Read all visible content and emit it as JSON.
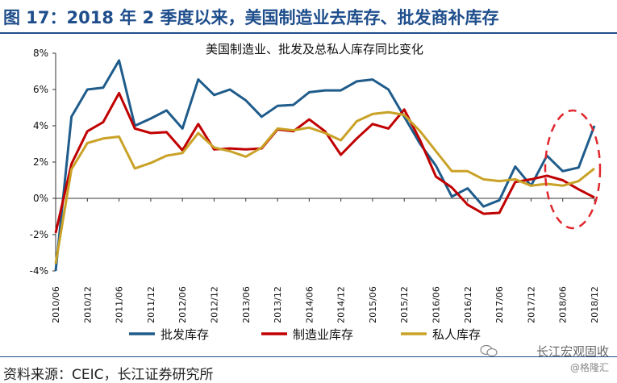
{
  "header": {
    "title": "图 17：2018 年 2 季度以来，美国制造业去库存、批发商补库存"
  },
  "footer": {
    "source": "资料来源：CEIC，长江证券研究所"
  },
  "watermark": {
    "line1": "长江宏观固收",
    "line2": "@格隆汇"
  },
  "chart_data": {
    "type": "line",
    "title": "美国制造业、批发及总私人库存同比变化",
    "xlabel": "",
    "ylabel": "",
    "ylim": [
      -4,
      8
    ],
    "yticks": [
      "-4%",
      "-2%",
      "0%",
      "2%",
      "4%",
      "6%",
      "8%"
    ],
    "ytick_values": [
      -4,
      -2,
      0,
      2,
      4,
      6,
      8
    ],
    "xticks": [
      "2010/06",
      "2010/12",
      "2011/06",
      "2011/12",
      "2012/06",
      "2012/12",
      "2013/06",
      "2013/12",
      "2014/06",
      "2014/12",
      "2015/06",
      "2015/12",
      "2016/06",
      "2016/12",
      "2017/06",
      "2017/12",
      "2018/06",
      "2018/12"
    ],
    "grid": false,
    "legend": "bottom",
    "x": [
      "2010/06",
      "2010/09",
      "2010/12",
      "2011/03",
      "2011/06",
      "2011/09",
      "2011/12",
      "2012/03",
      "2012/06",
      "2012/09",
      "2012/12",
      "2013/03",
      "2013/06",
      "2013/09",
      "2013/12",
      "2014/03",
      "2014/06",
      "2014/09",
      "2014/12",
      "2015/03",
      "2015/06",
      "2015/09",
      "2015/12",
      "2016/03",
      "2016/06",
      "2016/09",
      "2016/12",
      "2017/03",
      "2017/06",
      "2017/09",
      "2017/12",
      "2018/03",
      "2018/06",
      "2018/09",
      "2018/12"
    ],
    "series": [
      {
        "name": "批发库存",
        "color": "#1f5c8b",
        "values": [
          -4.0,
          4.5,
          6.0,
          6.1,
          7.6,
          4.0,
          4.4,
          4.85,
          3.85,
          6.55,
          5.7,
          6.0,
          5.4,
          4.5,
          5.1,
          5.15,
          5.85,
          5.95,
          5.95,
          6.45,
          6.55,
          6.0,
          4.5,
          3.0,
          1.8,
          0.1,
          0.55,
          -0.45,
          -0.1,
          1.75,
          0.7,
          2.35,
          1.5,
          1.7,
          4.0
        ]
      },
      {
        "name": "制造业库存",
        "color": "#c00000",
        "values": [
          -1.9,
          1.9,
          3.7,
          4.2,
          5.8,
          3.85,
          3.6,
          3.65,
          2.65,
          4.1,
          2.7,
          2.75,
          2.7,
          2.75,
          3.8,
          3.7,
          4.35,
          3.7,
          2.4,
          3.3,
          4.1,
          3.85,
          4.9,
          3.2,
          1.2,
          0.6,
          -0.35,
          -0.85,
          -0.8,
          0.9,
          1.05,
          1.25,
          1.0,
          0.5,
          0.05
        ]
      },
      {
        "name": "私人库存",
        "color": "#c9a227",
        "values": [
          -3.6,
          1.6,
          3.05,
          3.3,
          3.4,
          1.65,
          1.95,
          2.35,
          2.5,
          3.6,
          2.8,
          2.6,
          2.3,
          2.8,
          3.85,
          3.75,
          3.9,
          3.6,
          3.2,
          4.25,
          4.65,
          4.75,
          4.6,
          3.7,
          2.6,
          1.5,
          1.5,
          1.05,
          0.95,
          1.05,
          0.7,
          0.8,
          0.7,
          0.95,
          1.65
        ]
      }
    ]
  }
}
